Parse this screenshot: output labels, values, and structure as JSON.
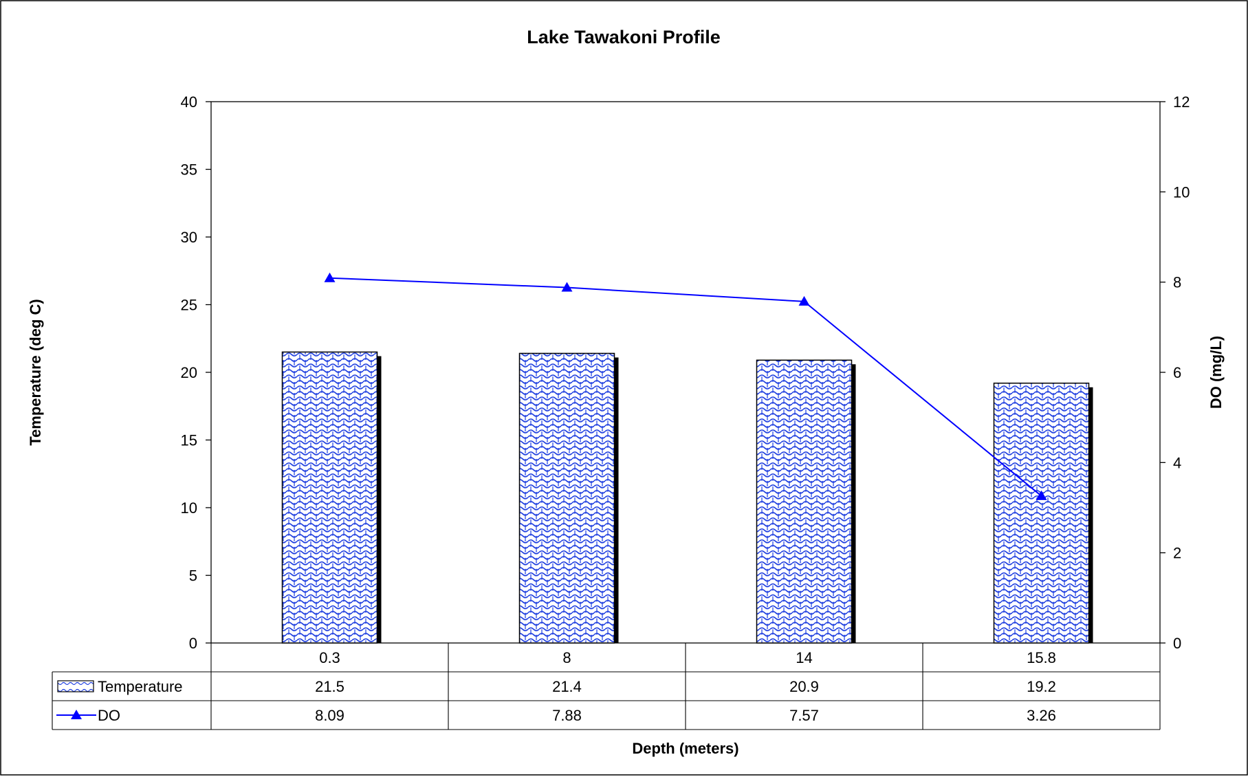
{
  "chart_data": {
    "type": "bar",
    "title": "Lake Tawakoni Profile",
    "xlabel": "Depth (meters)",
    "ylabel": "Temperature (deg C)",
    "y2label": "DO (mg/L)",
    "categories": [
      "0.3",
      "8",
      "14",
      "15.8"
    ],
    "ylim": [
      0,
      40
    ],
    "y2lim": [
      0,
      12
    ],
    "yticks": [
      "0",
      "5",
      "10",
      "15",
      "20",
      "25",
      "30",
      "35",
      "40"
    ],
    "y2ticks": [
      "0",
      "2",
      "4",
      "6",
      "8",
      "10",
      "12"
    ],
    "grid": false,
    "legend": "data-table",
    "series": [
      {
        "name": "Temperature",
        "type": "bar",
        "axis": "left",
        "values": [
          21.5,
          21.4,
          20.9,
          19.2
        ],
        "labels": [
          "21.5",
          "21.4",
          "20.9",
          "19.2"
        ],
        "color": "#0000ff"
      },
      {
        "name": "DO",
        "type": "line",
        "axis": "right",
        "values": [
          8.09,
          7.88,
          7.57,
          3.26
        ],
        "labels": [
          "8.09",
          "7.88",
          "7.57",
          "3.26"
        ],
        "color": "#0000ff"
      }
    ]
  }
}
